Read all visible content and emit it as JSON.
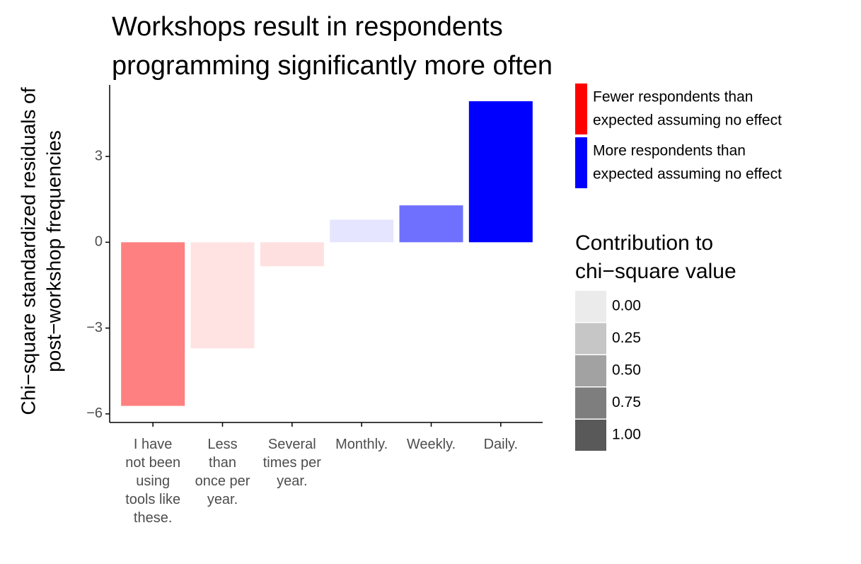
{
  "chart_data": {
    "type": "bar",
    "title": [
      "Workshops result in respondents",
      "programming significantly more often"
    ],
    "y_label": [
      "Chi−square standardized residuals of",
      "post−workshop frequencies"
    ],
    "categories": [
      "I have not been using tools like these.",
      "Less than once per year.",
      "Several times per year.",
      "Monthly.",
      "Weekly.",
      "Daily."
    ],
    "values": [
      -5.72,
      -3.71,
      -0.84,
      0.79,
      1.29,
      4.93
    ],
    "colors": [
      "#ff8080",
      "#ffe3e3",
      "#ffe0e0",
      "#e5e5ff",
      "#7070ff",
      "#0000ff"
    ],
    "ylim": [
      -6.3,
      5.5
    ],
    "yticks": [
      {
        "value": -6,
        "label": "−6"
      },
      {
        "value": -3,
        "label": "−3"
      },
      0,
      3
    ],
    "legend": [
      {
        "name": [
          "Fewer respondents than",
          "expected assuming no effect"
        ],
        "color": "#ff0000"
      },
      {
        "name": [
          "More respondents than",
          "expected assuming no effect"
        ],
        "color": "#0000ff"
      }
    ],
    "alpha_legend": {
      "title": [
        "Contribution to",
        "chi−square value"
      ],
      "ticks": [
        {
          "value": 0,
          "label": "0.00"
        },
        {
          "value": 0.25,
          "label": "0.25"
        },
        {
          "value": 0.5,
          "label": "0.50"
        },
        {
          "value": 0.75,
          "label": "0.75"
        },
        {
          "value": 1,
          "label": "1.00"
        }
      ]
    }
  }
}
